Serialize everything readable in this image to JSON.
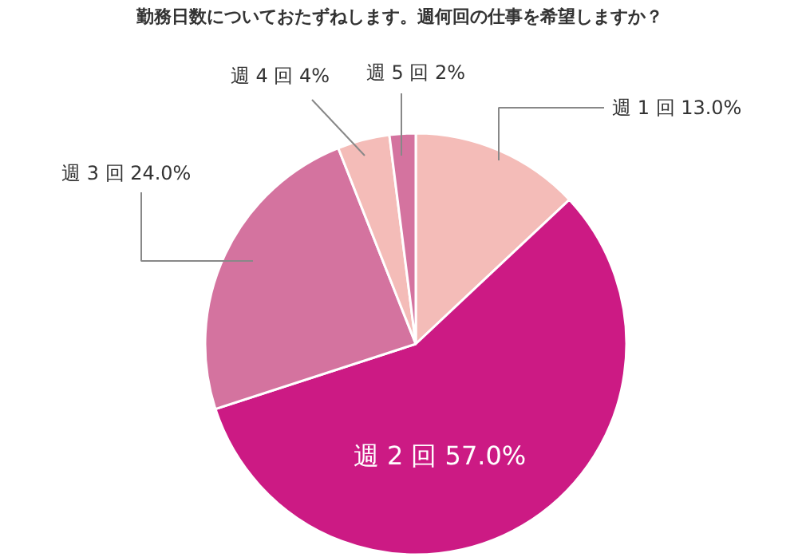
{
  "chart_data": {
    "type": "pie",
    "title": "勤務日数についておたずねします。週何回の仕事を希望しますか？",
    "categories": [
      "週 1 回",
      "週 2 回",
      "週 3 回",
      "週 4 回",
      "週 5 回"
    ],
    "values": [
      13,
      57,
      24,
      4,
      2
    ],
    "value_labels": [
      "13.0%",
      "57.0%",
      "24.0%",
      "4%",
      "2%"
    ],
    "colors": [
      "#f4bcb8",
      "#cc1a84",
      "#d4739f",
      "#f4bcb8",
      "#d4739f"
    ]
  }
}
